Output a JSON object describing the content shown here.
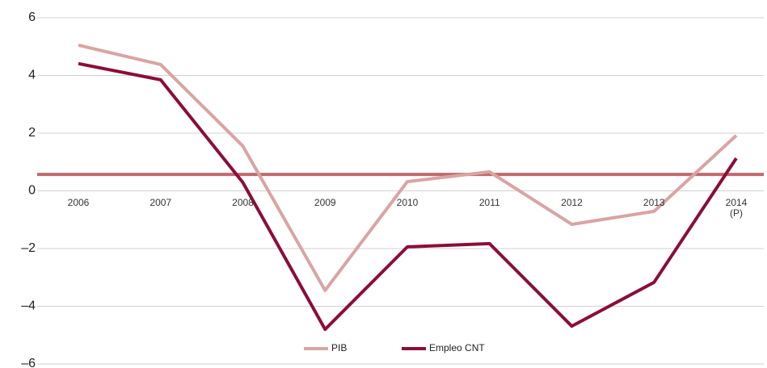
{
  "chart_data": {
    "type": "line",
    "categories": [
      "2006",
      "2007",
      "2008",
      "2009",
      "2010",
      "2011",
      "2012",
      "2013",
      "2014\n(P)"
    ],
    "series": [
      {
        "name": "PIB",
        "color": "#d9a4a3",
        "values": [
          5.05,
          4.38,
          1.55,
          -3.45,
          0.32,
          0.66,
          -1.16,
          -0.71,
          1.92
        ]
      },
      {
        "name": "Empleo CNT",
        "color": "#8b0d3a",
        "values": [
          4.41,
          3.85,
          0.29,
          -4.8,
          -1.94,
          -1.83,
          -4.69,
          -3.17,
          1.13
        ]
      }
    ],
    "reference_line": {
      "value": 0.57,
      "color": "#c0696e"
    },
    "ylim": [
      -6,
      6
    ],
    "yticks": [
      {
        "value": -6,
        "label": "–6"
      },
      {
        "value": -4,
        "label": "–4"
      },
      {
        "value": -2,
        "label": "–2"
      },
      0,
      2,
      4,
      6
    ],
    "grid": true,
    "legend": "bottom"
  }
}
